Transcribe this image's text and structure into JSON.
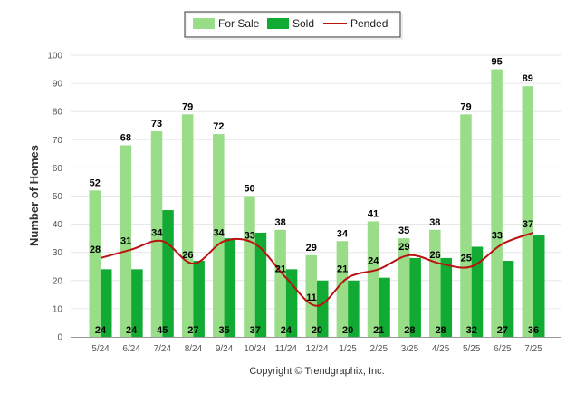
{
  "chart_data": {
    "type": "bar",
    "title": "",
    "xlabel": "",
    "ylabel": "Number of Homes",
    "ylim": [
      0,
      100
    ],
    "yticks": [
      0,
      10,
      20,
      30,
      40,
      50,
      60,
      70,
      80,
      90,
      100
    ],
    "grid": true,
    "legend_position": "top-center",
    "categories": [
      "5/24",
      "6/24",
      "7/24",
      "8/24",
      "9/24",
      "10/24",
      "11/24",
      "12/24",
      "1/25",
      "2/25",
      "3/25",
      "4/25",
      "5/25",
      "6/25",
      "7/25"
    ],
    "series": [
      {
        "name": "For Sale",
        "kind": "bar",
        "color": "#99dd88",
        "values": [
          52,
          68,
          73,
          79,
          72,
          50,
          38,
          29,
          34,
          41,
          35,
          38,
          79,
          95,
          89
        ]
      },
      {
        "name": "Sold",
        "kind": "bar",
        "color": "#11aa33",
        "values": [
          24,
          24,
          45,
          27,
          35,
          37,
          24,
          20,
          20,
          21,
          28,
          28,
          32,
          27,
          36
        ]
      },
      {
        "name": "Pended",
        "kind": "line",
        "color": "#bb1111",
        "values": [
          28,
          31,
          34,
          26,
          34,
          33,
          21,
          11,
          21,
          24,
          29,
          26,
          25,
          33,
          37
        ]
      }
    ]
  },
  "footer": {
    "copyright": "Copyright © Trendgraphix, Inc."
  }
}
